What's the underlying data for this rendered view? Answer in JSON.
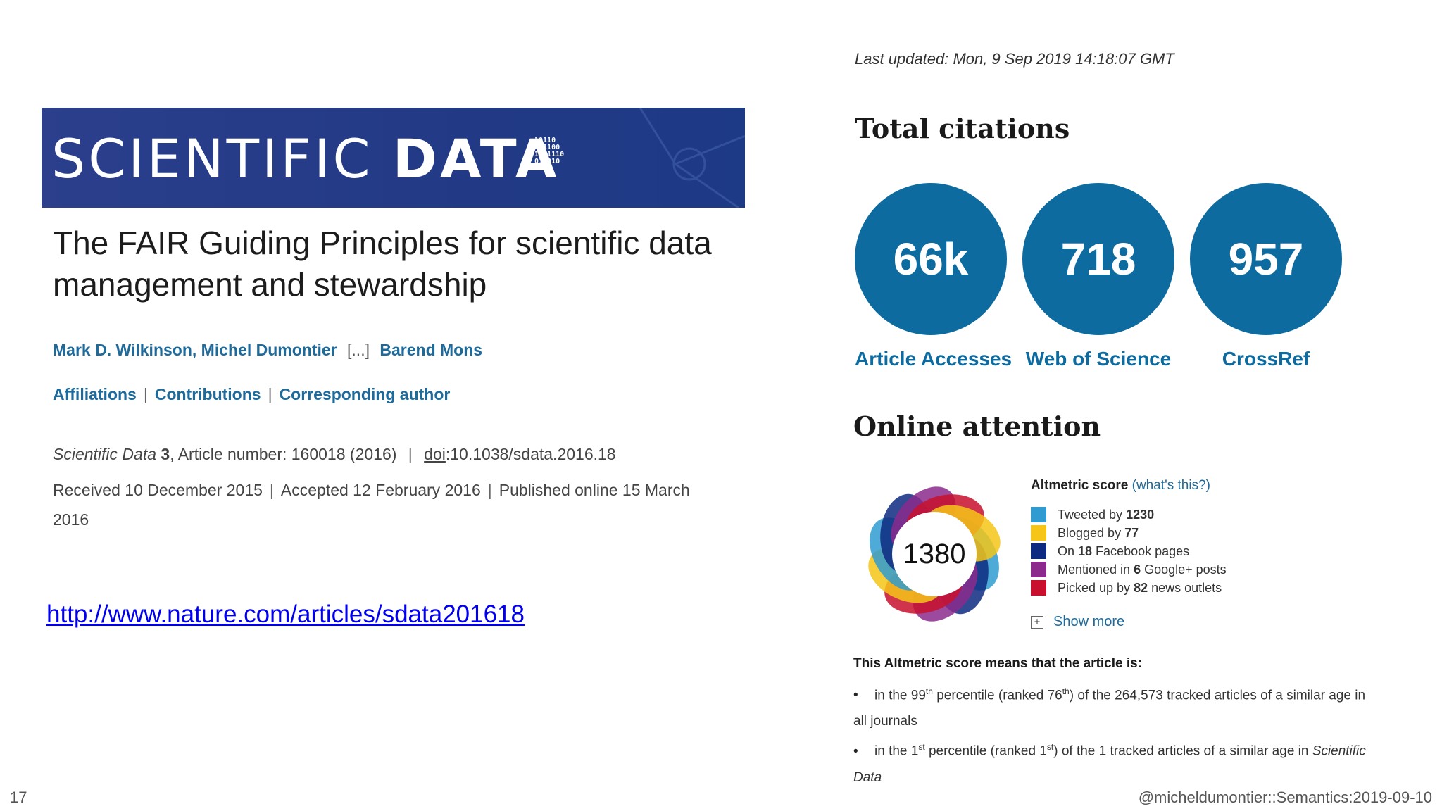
{
  "article": {
    "journal_name_light": "SCIENTIFIC ",
    "journal_name_bold": "DATA",
    "binary_glyph": "10110\n011100\n1101110\n011010",
    "title": "The FAIR Guiding Principles for scientific data management and stewardship",
    "authors": {
      "author1": "Mark D. Wilkinson",
      "author2": "Michel Dumontier",
      "ellipsis": "[...]",
      "author3": "Barend Mons"
    },
    "links": {
      "affiliations": "Affiliations",
      "contributions": "Contributions",
      "corresponding": "Corresponding author",
      "separator": "|"
    },
    "citation": {
      "journal": "Scientific Data",
      "volume": "3",
      "article_number": ", Article number: 160018 (2016)",
      "doi_label": "doi",
      "doi_value": ":10.1038/sdata.2016.18"
    },
    "dates": {
      "received": "Received 10 December 2015",
      "accepted": "Accepted 12 February 2016",
      "published": "Published online 15 March 2016"
    }
  },
  "url": "http://www.nature.com/articles/sdata201618",
  "metrics": {
    "last_updated": "Last updated: Mon, 9 Sep 2019 14:18:07 GMT",
    "total_citations_title": "Total citations",
    "items": [
      {
        "value": "66k",
        "label": "Article Accesses"
      },
      {
        "value": "718",
        "label": "Web of Science"
      },
      {
        "value": "957",
        "label": "CrossRef"
      }
    ],
    "color": "#0e6b9f"
  },
  "attention": {
    "title": "Online attention",
    "score": "1380",
    "heading": "Altmetric score",
    "whats_this": "(what's this?)",
    "legend": [
      {
        "pre": "Tweeted by ",
        "bold": "1230",
        "post": "",
        "color": "#2f9bd0"
      },
      {
        "pre": "Blogged by ",
        "bold": "77",
        "post": "",
        "color": "#f5c518"
      },
      {
        "pre": "On ",
        "bold": "18",
        "post": " Facebook pages",
        "color": "#0e2a80"
      },
      {
        "pre": "Mentioned in ",
        "bold": "6",
        "post": " Google+ posts",
        "color": "#8b2a8c"
      },
      {
        "pre": "Picked up by ",
        "bold": "82",
        "post": " news outlets",
        "color": "#c8102e"
      }
    ],
    "show_more": "Show more",
    "means_heading": "This Altmetric score means that the article is:",
    "percentiles": [
      {
        "a": "in the 99",
        "a_sup": "th",
        "b": " percentile (ranked 76",
        "b_sup": "th",
        "c": ") of the 264,573 tracked articles of a similar age in all journals",
        "journal": ""
      },
      {
        "a": "in the 1",
        "a_sup": "st",
        "b": " percentile (ranked 1",
        "b_sup": "st",
        "c": ") of the 1 tracked articles of a similar age in ",
        "journal": "Scientific Data"
      }
    ]
  },
  "footer": {
    "slide_number": "17",
    "handle": "@micheldumontier::Semantics:2019-09-10"
  }
}
